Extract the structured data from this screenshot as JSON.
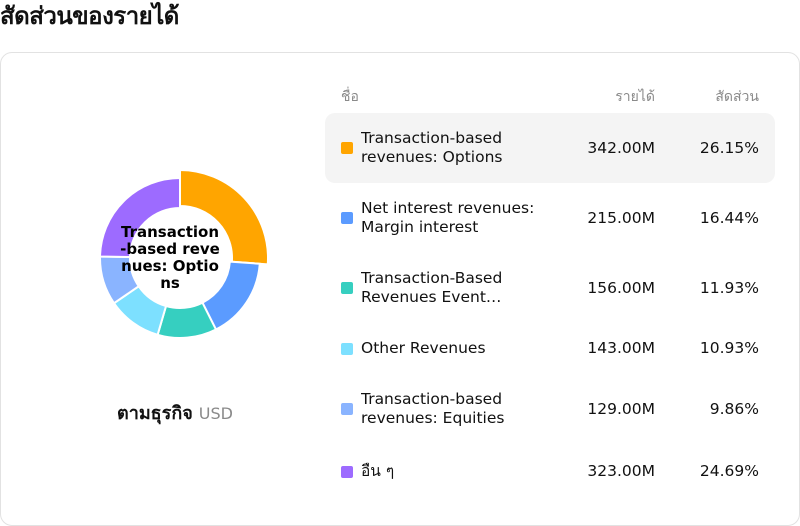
{
  "page": {
    "title": "สัดส่วนของรายได้"
  },
  "caption": {
    "main": "ตามธุรกิจ",
    "unit": "USD"
  },
  "table": {
    "headers": {
      "name": "ชื่อ",
      "revenue": "รายได้",
      "share": "สัดส่วน"
    },
    "rows": [
      {
        "line1": "Transaction-based",
        "line2": "revenues: Options",
        "revenue": "342.00M",
        "share": "26.15%",
        "color": "#FFA500"
      },
      {
        "line1": "Net interest revenues:",
        "line2": "Margin interest",
        "revenue": "215.00M",
        "share": "16.44%",
        "color": "#5B9BFF"
      },
      {
        "line1": "Transaction-Based",
        "line2": "Revenues Event…",
        "revenue": "156.00M",
        "share": "11.93%",
        "color": "#36CFC0"
      },
      {
        "line1": "Other Revenues",
        "line2": "",
        "revenue": "143.00M",
        "share": "10.93%",
        "color": "#7DE0FF"
      },
      {
        "line1": "Transaction-based",
        "line2": "revenues: Equities",
        "revenue": "129.00M",
        "share": "9.86%",
        "color": "#8AB4FF"
      },
      {
        "line1": "อื่น ๆ",
        "line2": "",
        "revenue": "323.00M",
        "share": "24.69%",
        "color": "#9D6BFF"
      }
    ]
  },
  "chart_data": {
    "type": "pie",
    "variant": "donut",
    "center_label": "Transaction-based revenues: Options",
    "highlighted_index": 0,
    "categories": [
      "Transaction-based revenues: Options",
      "Net interest revenues: Margin interest",
      "Transaction-Based Revenues Event…",
      "Other Revenues",
      "Transaction-based revenues: Equities",
      "อื่น ๆ"
    ],
    "values": [
      342.0,
      215.0,
      156.0,
      143.0,
      129.0,
      323.0
    ],
    "shares_percent": [
      26.15,
      16.44,
      11.93,
      10.93,
      9.86,
      24.69
    ],
    "colors": [
      "#FFA500",
      "#5B9BFF",
      "#36CFC0",
      "#7DE0FF",
      "#8AB4FF",
      "#9D6BFF"
    ],
    "unit": "USD"
  }
}
